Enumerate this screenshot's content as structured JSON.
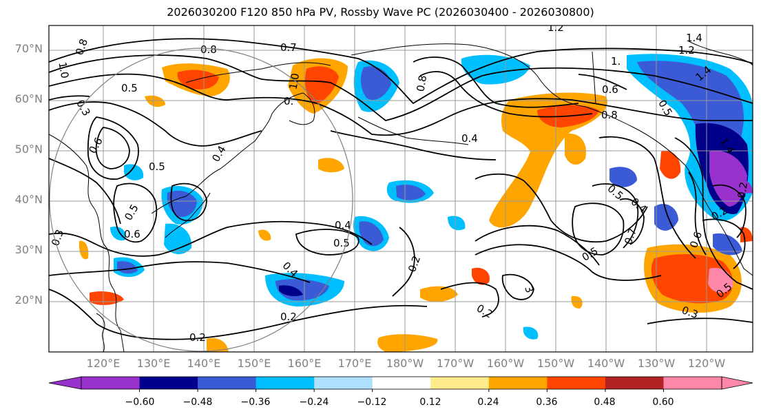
{
  "title": "2026030200 F120 850 hPa PV, Rossby Wave PC (2026030400 - 2026030800)",
  "map": {
    "projection": "equirectangular",
    "lon_range": [
      "112°E",
      "108°W"
    ],
    "lat_range": [
      "10°N",
      "75°N"
    ],
    "grid": true,
    "lat_labels": [
      "70°N",
      "60°N",
      "50°N",
      "40°N",
      "30°N",
      "20°N"
    ],
    "lon_labels": [
      "120°E",
      "130°E",
      "140°E",
      "150°E",
      "160°E",
      "170°E",
      "180°W",
      "170°W",
      "160°W",
      "150°W",
      "140°W",
      "130°W",
      "120°W"
    ],
    "label_color": "#808080",
    "contour_labels": [
      "1.2",
      "1.4",
      "0.8",
      "0.7",
      "1.0",
      "0.8",
      "0.5",
      "0.6",
      "1.0",
      "0.3",
      "0.7",
      "0.4",
      "0.6",
      "0.5",
      "0.4",
      "0.6",
      "0.7",
      "0.3",
      "0.4",
      "0.5",
      "0.4",
      "0.2",
      "0.2",
      "0.3",
      "0.2",
      "0.3",
      "0.4",
      "0.5",
      "0.7",
      "0.5",
      "0.4",
      "0.8",
      "0.2",
      "0.5",
      "0.6",
      "1.2",
      "1.4",
      "0.3",
      "0.5",
      "0.5"
    ],
    "anomaly_regions": "shaded Rossby wave PC positive (orange/red) and negative (blue/purple) centers"
  },
  "colorbar": {
    "colors": [
      "#9932cc",
      "#00008b",
      "#3b5bd6",
      "#00bfff",
      "#b0e0ff",
      "#ffffff",
      "#ffff",
      "#ffeb8a",
      "#ffa500",
      "#ff4500",
      "#b22222",
      "#ff88aa"
    ],
    "bins": [
      "#9932cc",
      "#00008b",
      "#3b5bd6",
      "#00bfff",
      "#b0e0ff",
      "#ffffff",
      "#ffeb8a",
      "#ffa500",
      "#ff4500",
      "#b22222",
      "#ff88aa"
    ],
    "ticks": [
      "−0.60",
      "−0.48",
      "−0.36",
      "−0.24",
      "−0.12",
      "0.12",
      "0.24",
      "0.36",
      "0.48",
      "0.60"
    ],
    "extend": "both"
  }
}
